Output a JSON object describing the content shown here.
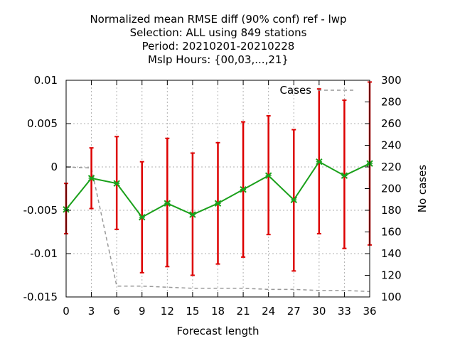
{
  "chart_data": {
    "type": "line",
    "title_lines": [
      "Normalized mean RMSE diff (90% conf) ref - lwp",
      "Selection: ALL using   849 stations",
      "Period: 20210201-20210228",
      "Mslp   Hours: {00,03,...,21}"
    ],
    "xlabel": "Forecast length",
    "y2label": "No cases",
    "x": [
      0,
      3,
      6,
      9,
      12,
      15,
      18,
      21,
      24,
      27,
      30,
      33,
      36
    ],
    "xlim": [
      0,
      36
    ],
    "ylim": [
      -0.015,
      0.01
    ],
    "y2lim": [
      100,
      300
    ],
    "yticks": [
      "0.01",
      "0.005",
      "0",
      "-0.005",
      "-0.01",
      "-0.015"
    ],
    "ytick_values": [
      0.01,
      0.005,
      0,
      -0.005,
      -0.01,
      -0.015
    ],
    "y2ticks": [
      300,
      280,
      260,
      240,
      220,
      200,
      180,
      160,
      140,
      120,
      100
    ],
    "grid": true,
    "series": [
      {
        "values": [
          -0.0049,
          -0.0013,
          -0.0019,
          -0.0058,
          -0.0042,
          -0.0055,
          -0.0042,
          -0.0026,
          -0.001,
          -0.0038,
          0.0006,
          -0.001,
          0.0004
        ],
        "err_low": [
          -0.0077,
          -0.0048,
          -0.0072,
          -0.0122,
          -0.0115,
          -0.0125,
          -0.0112,
          -0.0104,
          -0.0078,
          -0.012,
          -0.0077,
          -0.0094,
          -0.009
        ],
        "err_high": [
          -0.0019,
          0.0022,
          0.0035,
          0.0006,
          0.0033,
          0.0016,
          0.0028,
          0.0052,
          0.0059,
          0.0043,
          0.009,
          0.0077,
          0.0098
        ],
        "color": "#1aa01a",
        "error_color": "#dd0000"
      },
      {
        "name": "Cases",
        "axis": "y2",
        "values": [
          220,
          219,
          110,
          110,
          109,
          108,
          108,
          108,
          107,
          107,
          106,
          106,
          105
        ],
        "color": "#999999",
        "dashed": true
      }
    ],
    "legend_position": "top-right"
  }
}
